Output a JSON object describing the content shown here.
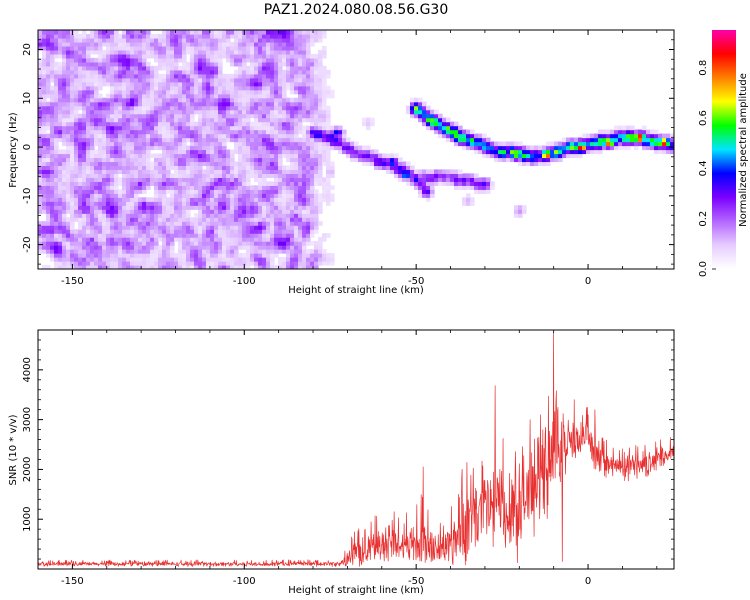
{
  "title": "PAZ1.2024.080.08.56.G30",
  "chart_data": [
    {
      "type": "heatmap",
      "xlabel": "Height of straight line (km)",
      "ylabel": "Frequency (Hz)",
      "xlim": [
        -160,
        25
      ],
      "ylim": [
        -25,
        24
      ],
      "xticks": [
        -150,
        -100,
        -50,
        0
      ],
      "yticks": [
        -20,
        -10,
        0,
        10,
        20
      ],
      "colorbar": {
        "label": "Normalized spectral amplitude",
        "range": [
          0,
          0.95
        ],
        "ticks": [
          "0.0",
          "0.2",
          "0.4",
          "0.6",
          "0.8"
        ],
        "colors": [
          "#ffffff",
          "#e6ccff",
          "#b366ff",
          "#7a00ff",
          "#0000ff",
          "#00e5ff",
          "#00ff00",
          "#ffff00",
          "#ff8000",
          "#ff0000",
          "#ff00aa"
        ]
      },
      "noise_region": {
        "x": [
          -160,
          -72
        ],
        "y": [
          -25,
          24
        ],
        "amplitude": [
          0.05,
          0.25
        ]
      },
      "ridges": [
        {
          "points": [
            [
              -80,
              3
            ],
            [
              -75,
              2
            ],
            [
              -68,
              -1
            ],
            [
              -62,
              -2.5
            ],
            [
              -57,
              -3.5
            ],
            [
              -52,
              -5.5
            ],
            [
              -48,
              -8
            ],
            [
              -46,
              -10
            ]
          ],
          "amplitude": 0.35
        },
        {
          "points": [
            [
              -50,
              8
            ],
            [
              -46,
              6
            ],
            [
              -42,
              4
            ],
            [
              -38,
              2.5
            ],
            [
              -33,
              1
            ],
            [
              -28,
              -0.5
            ],
            [
              -22,
              -1
            ],
            [
              -16,
              -2
            ],
            [
              -10,
              -1
            ],
            [
              -5,
              0
            ],
            [
              0,
              0.5
            ],
            [
              5,
              1.5
            ],
            [
              10,
              2
            ],
            [
              15,
              2
            ],
            [
              20,
              1
            ],
            [
              25,
              0.5
            ]
          ],
          "amplitude": 0.6
        },
        {
          "points": [
            [
              -48,
              -6
            ],
            [
              -43,
              -6
            ],
            [
              -38,
              -6.5
            ],
            [
              -33,
              -7
            ],
            [
              -29,
              -8
            ]
          ],
          "amplitude": 0.3
        }
      ],
      "hotspots": [
        {
          "x": -12,
          "y": -1.5,
          "amplitude": 0.85
        },
        {
          "x": -2,
          "y": 0,
          "amplitude": 0.9
        },
        {
          "x": 6,
          "y": 1,
          "amplitude": 0.85
        },
        {
          "x": 15,
          "y": 2,
          "amplitude": 0.95
        },
        {
          "x": 22,
          "y": 1,
          "amplitude": 0.9
        },
        {
          "x": -57,
          "y": -3,
          "amplitude": 0.45
        },
        {
          "x": -53,
          "y": -5.5,
          "amplitude": 0.5
        },
        {
          "x": -73,
          "y": 3,
          "amplitude": 0.4
        },
        {
          "x": -43,
          "y": 4,
          "amplitude": 0.4
        }
      ],
      "blobs": [
        {
          "x": -20,
          "y": -13,
          "amplitude": 0.15
        },
        {
          "x": -35,
          "y": -11,
          "amplitude": 0.12
        },
        {
          "x": -75,
          "y": -5,
          "amplitude": 0.12
        },
        {
          "x": -64,
          "y": 5,
          "amplitude": 0.1
        }
      ]
    },
    {
      "type": "line",
      "xlabel": "Height of straight line (km)",
      "ylabel": "SNR (10 * v/v)",
      "xlim": [
        -160,
        25
      ],
      "ylim": [
        0,
        4800
      ],
      "xticks": [
        -150,
        -100,
        -50,
        0
      ],
      "yticks": [
        1000,
        2000,
        3000,
        4000
      ],
      "color": "#e83030",
      "envelope": [
        {
          "x": -160,
          "base": 100,
          "amp": 70
        },
        {
          "x": -72,
          "base": 100,
          "amp": 80
        },
        {
          "x": -68,
          "base": 300,
          "amp": 500
        },
        {
          "x": -60,
          "base": 500,
          "amp": 600
        },
        {
          "x": -52,
          "base": 500,
          "amp": 600
        },
        {
          "x": -48,
          "base": 550,
          "amp": 1000
        },
        {
          "x": -44,
          "base": 350,
          "amp": 400
        },
        {
          "x": -40,
          "base": 500,
          "amp": 800
        },
        {
          "x": -35,
          "base": 900,
          "amp": 1300
        },
        {
          "x": -30,
          "base": 1200,
          "amp": 1500
        },
        {
          "x": -25,
          "base": 1300,
          "amp": 1500
        },
        {
          "x": -20,
          "base": 1300,
          "amp": 1800
        },
        {
          "x": -15,
          "base": 1700,
          "amp": 1400
        },
        {
          "x": -10,
          "base": 2200,
          "amp": 1500
        },
        {
          "x": -5,
          "base": 2500,
          "amp": 700
        },
        {
          "x": 0,
          "base": 2700,
          "amp": 500
        },
        {
          "x": 2,
          "base": 2200,
          "amp": 500
        },
        {
          "x": 10,
          "base": 2000,
          "amp": 400
        },
        {
          "x": 18,
          "base": 2100,
          "amp": 400
        },
        {
          "x": 25,
          "base": 2350,
          "amp": 300
        }
      ],
      "spikes": [
        {
          "x": -10,
          "y": 4750
        },
        {
          "x": -7.5,
          "y": 150
        },
        {
          "x": -27,
          "y": 3680
        },
        {
          "x": -48,
          "y": 2050
        },
        {
          "x": -4,
          "y": 3400
        },
        {
          "x": 2,
          "y": 3200
        }
      ]
    }
  ]
}
